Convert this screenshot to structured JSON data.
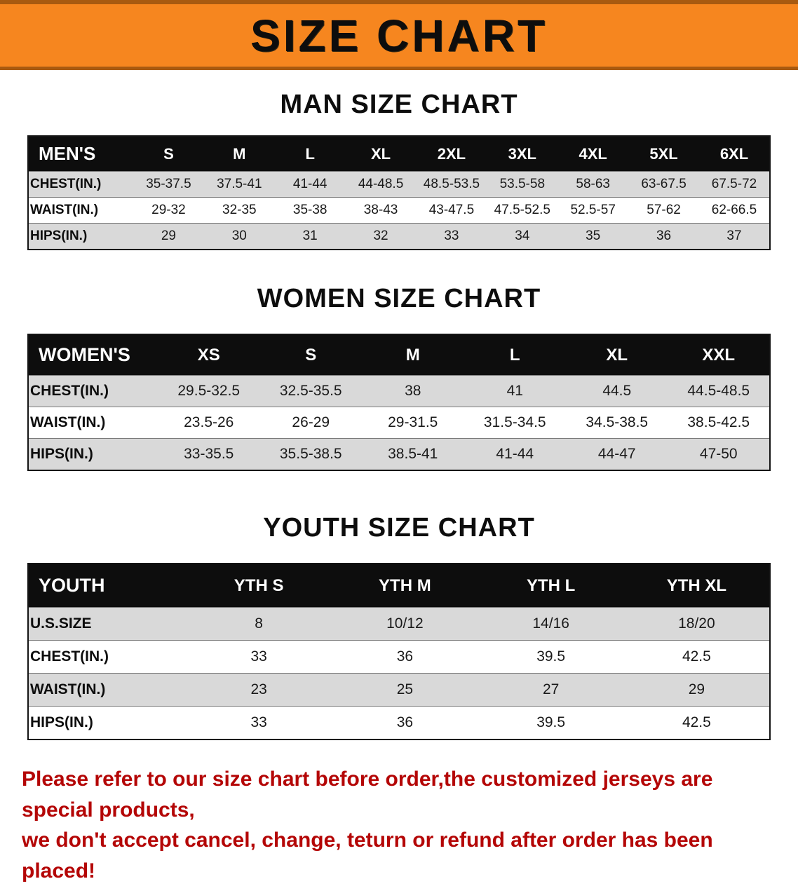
{
  "banner": {
    "title": "SIZE CHART",
    "bg_color": "#f6861f",
    "text_color": "#0d0d0d"
  },
  "sections": [
    {
      "heading": "MAN SIZE CHART",
      "table": {
        "header": [
          "MEN'S",
          "S",
          "M",
          "L",
          "XL",
          "2XL",
          "3XL",
          "4XL",
          "5XL",
          "6XL"
        ],
        "rows": [
          [
            "CHEST(IN.)",
            "35-37.5",
            "37.5-41",
            "41-44",
            "44-48.5",
            "48.5-53.5",
            "53.5-58",
            "58-63",
            "63-67.5",
            "67.5-72"
          ],
          [
            "WAIST(IN.)",
            "29-32",
            "32-35",
            "35-38",
            "38-43",
            "43-47.5",
            "47.5-52.5",
            "52.5-57",
            "57-62",
            "62-66.5"
          ],
          [
            "HIPS(IN.)",
            "29",
            "30",
            "31",
            "32",
            "33",
            "34",
            "35",
            "36",
            "37"
          ]
        ]
      }
    },
    {
      "heading": "WOMEN SIZE CHART",
      "table": {
        "header": [
          "WOMEN'S",
          "XS",
          "S",
          "M",
          "L",
          "XL",
          "XXL"
        ],
        "rows": [
          [
            "CHEST(IN.)",
            "29.5-32.5",
            "32.5-35.5",
            "38",
            "41",
            "44.5",
            "44.5-48.5"
          ],
          [
            "WAIST(IN.)",
            "23.5-26",
            "26-29",
            "29-31.5",
            "31.5-34.5",
            "34.5-38.5",
            "38.5-42.5"
          ],
          [
            "HIPS(IN.)",
            "33-35.5",
            "35.5-38.5",
            "38.5-41",
            "41-44",
            "44-47",
            "47-50"
          ]
        ]
      }
    },
    {
      "heading": "YOUTH SIZE CHART",
      "table": {
        "header": [
          "YOUTH",
          "YTH S",
          "YTH M",
          "YTH L",
          "YTH XL"
        ],
        "rows": [
          [
            "U.S.SIZE",
            "8",
            "10/12",
            "14/16",
            "18/20"
          ],
          [
            "CHEST(IN.)",
            "33",
            "36",
            "39.5",
            "42.5"
          ],
          [
            "WAIST(IN.)",
            "23",
            "25",
            "27",
            "29"
          ],
          [
            "HIPS(IN.)",
            "33",
            "36",
            "39.5",
            "42.5"
          ]
        ]
      }
    }
  ],
  "disclaimer": {
    "line1": "Please refer to our size chart before order,the customized jerseys are special products,",
    "line2": "we don't accept cancel, change, teturn or refund after order has been placed!",
    "color": "#b40606"
  }
}
